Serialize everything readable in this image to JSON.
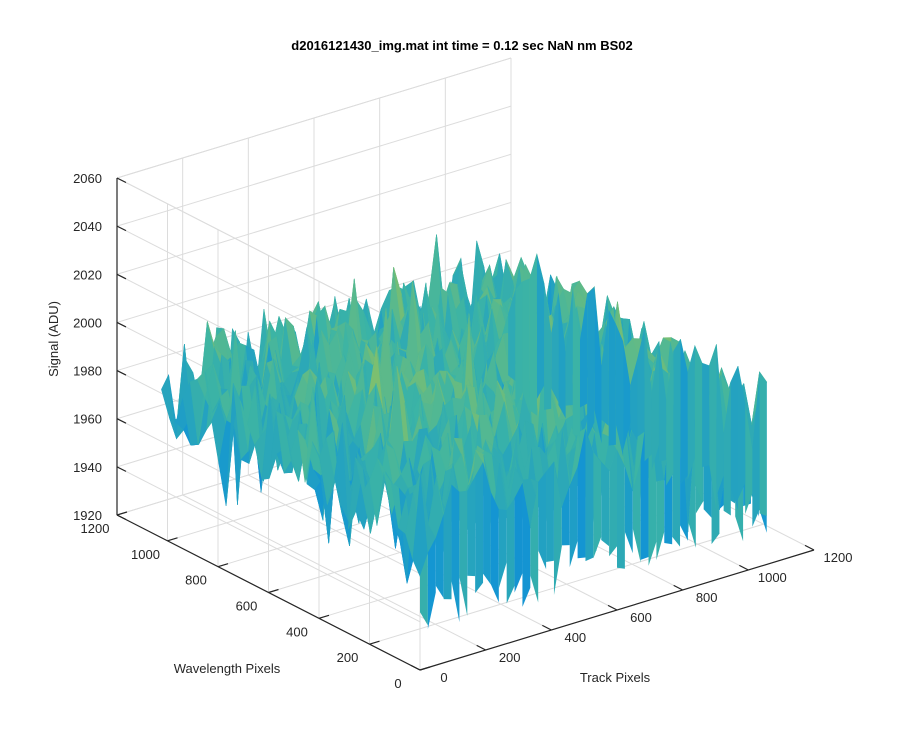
{
  "chart_data": {
    "type": "surface",
    "title": "d2016121430_img.mat int time = 0.12 sec  NaN nm BS02",
    "xlabel": "Track Pixels",
    "ylabel": "Wavelength Pixels",
    "zlabel": "Signal (ADU)",
    "xlim": [
      0,
      1200
    ],
    "ylim": [
      0,
      1200
    ],
    "zlim": [
      1920,
      2060
    ],
    "xticks": [
      "0",
      "200",
      "400",
      "600",
      "800",
      "1000",
      "1200"
    ],
    "yticks": [
      "0",
      "200",
      "400",
      "600",
      "800",
      "1000",
      "1200"
    ],
    "zticks": [
      "1920",
      "1940",
      "1960",
      "1980",
      "2000",
      "2020",
      "2040",
      "2060"
    ],
    "x_extent": [
      0,
      1056
    ],
    "y_extent": [
      0,
      1024
    ],
    "grid": true,
    "colormap": "parula",
    "surface_mean": 1985,
    "surface_noise_range": [
      1930,
      2045
    ],
    "colors": {
      "low": "#0072BD",
      "mid": "#5FB99A",
      "high": "#EDB120"
    }
  }
}
